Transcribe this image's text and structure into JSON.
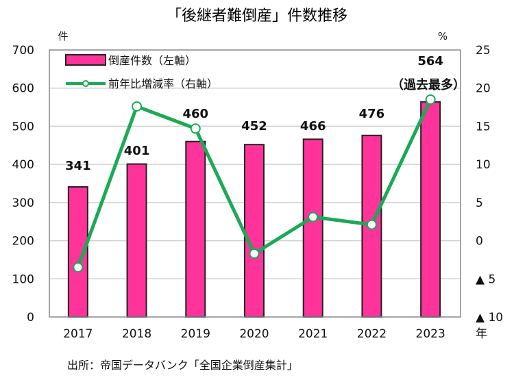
{
  "chart_data": {
    "type": "bar+line",
    "title": "「後継者難倒産」件数推移",
    "categories": [
      "2017",
      "2018",
      "2019",
      "2020",
      "2021",
      "2022",
      "2023"
    ],
    "xlabel": "年",
    "series": [
      {
        "name": "倒産件数（左軸）",
        "type": "bar",
        "axis": "left",
        "color": "#ff3399",
        "values": [
          341,
          401,
          460,
          452,
          466,
          476,
          564
        ],
        "data_labels": [
          "341",
          "401",
          "460",
          "452",
          "466",
          "476",
          "564"
        ]
      },
      {
        "name": "前年比増減率（右軸）",
        "type": "line",
        "axis": "right",
        "color": "#1aaa55",
        "values": [
          -3.5,
          17.6,
          14.7,
          -1.7,
          3.1,
          2.1,
          18.5
        ]
      }
    ],
    "annotation": "（過去最多）",
    "left_axis": {
      "unit": "件",
      "range": [
        0,
        700
      ],
      "ticks": [
        "0",
        "100",
        "200",
        "300",
        "400",
        "500",
        "600",
        "700"
      ],
      "tick_values": [
        0,
        100,
        200,
        300,
        400,
        500,
        600,
        700
      ]
    },
    "right_axis": {
      "unit": "%",
      "range": [
        -10,
        25
      ],
      "ticks": [
        "▲ 10",
        "▲ 5",
        "0",
        "5",
        "10",
        "15",
        "20",
        "25"
      ],
      "tick_values": [
        -10,
        -5,
        0,
        5,
        10,
        15,
        20,
        25
      ]
    },
    "grid": true,
    "legend": "top-left"
  },
  "source": "出所：帝国データバンク「全国企業倒産集計」"
}
